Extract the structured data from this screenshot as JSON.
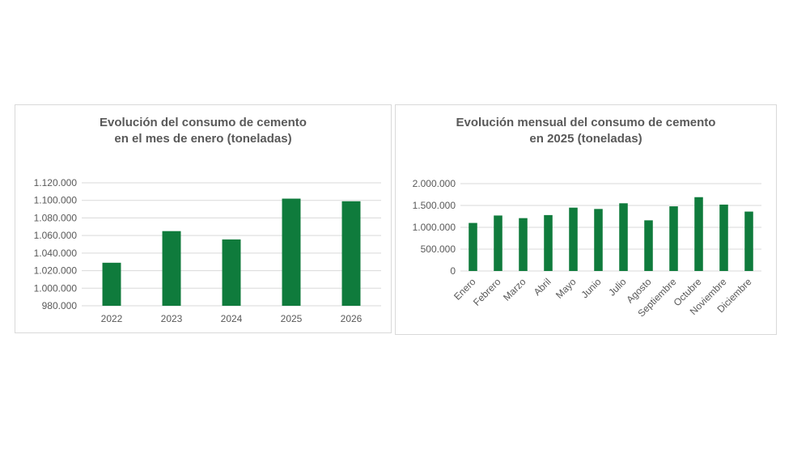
{
  "chart_data": [
    {
      "type": "bar",
      "title_lines": [
        "Evolución del consumo de cemento",
        "en el mes de enero (toneladas)"
      ],
      "categories": [
        "2022",
        "2023",
        "2024",
        "2025",
        "2026"
      ],
      "values": [
        1029000,
        1065000,
        1055500,
        1102000,
        1099000
      ],
      "y_ticks": [
        "980.000",
        "1.000.000",
        "1.020.000",
        "1.040.000",
        "1.060.000",
        "1.080.000",
        "1.100.000",
        "1.120.000"
      ],
      "ylim": [
        980000,
        1120000
      ],
      "color": "#0f7b3c",
      "grid": true
    },
    {
      "type": "bar",
      "title_lines": [
        "Evolución mensual del consumo de cemento",
        "en 2025 (toneladas)"
      ],
      "categories": [
        "Enero",
        "Febrero",
        "Marzo",
        "Abril",
        "Mayo",
        "Junio",
        "Julio",
        "Agosto",
        "Septiembre",
        "Octubre",
        "Noviembre",
        "Diciembre"
      ],
      "values": [
        1100000,
        1270000,
        1210000,
        1280000,
        1450000,
        1420000,
        1550000,
        1160000,
        1480000,
        1690000,
        1520000,
        1360000
      ],
      "y_ticks": [
        "0",
        "500.000",
        "1.000.000",
        "1.500.000",
        "2.000.000"
      ],
      "ylim": [
        0,
        2000000
      ],
      "color": "#0f7b3c",
      "grid": true
    }
  ]
}
